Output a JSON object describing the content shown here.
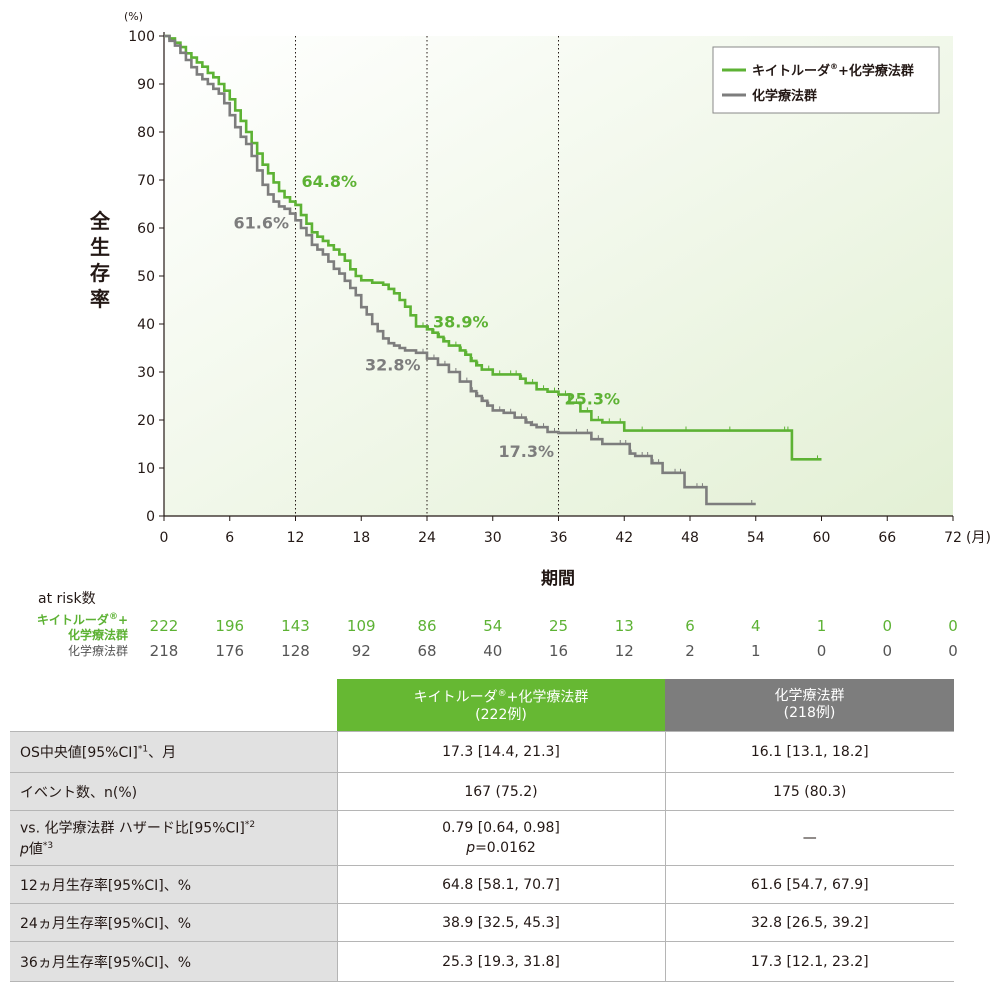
{
  "chart_data": {
    "type": "line",
    "ylabel": "全生存率",
    "y_unit": "(%)",
    "xlabel": "期間",
    "x_unit": "(月)",
    "xlim": [
      0,
      72
    ],
    "ylim": [
      0,
      100
    ],
    "xticks": [
      "0",
      "6",
      "12",
      "18",
      "24",
      "30",
      "36",
      "42",
      "48",
      "54",
      "60",
      "66",
      "72"
    ],
    "yticks": [
      "0",
      "10",
      "20",
      "30",
      "40",
      "50",
      "60",
      "70",
      "80",
      "90",
      "100"
    ],
    "reference_lines_x": [
      12,
      24,
      36
    ],
    "legend_position": "top-right",
    "series": [
      {
        "name": "キイトルーダ®+化学療法群",
        "legend_label": "キイトルーダ",
        "legend_suffix": "+化学療法群",
        "color": "#5db234",
        "points": [
          [
            0,
            100
          ],
          [
            0.5,
            99.5
          ],
          [
            1,
            98.6
          ],
          [
            1.5,
            97.7
          ],
          [
            2,
            96.4
          ],
          [
            2.5,
            95.5
          ],
          [
            3,
            94.5
          ],
          [
            3.5,
            93.6
          ],
          [
            4,
            92.3
          ],
          [
            4.5,
            91.4
          ],
          [
            5,
            90
          ],
          [
            5.5,
            88.6
          ],
          [
            6,
            86.8
          ],
          [
            6.5,
            84.5
          ],
          [
            7,
            82.3
          ],
          [
            7.5,
            80
          ],
          [
            8,
            77.7
          ],
          [
            8.5,
            75.5
          ],
          [
            9,
            73.2
          ],
          [
            9.5,
            71.4
          ],
          [
            10,
            69.5
          ],
          [
            10.5,
            67.7
          ],
          [
            11,
            66.4
          ],
          [
            11.5,
            65.5
          ],
          [
            12,
            64.8
          ],
          [
            12.5,
            62.7
          ],
          [
            13,
            60.9
          ],
          [
            13.5,
            59.1
          ],
          [
            14,
            58.2
          ],
          [
            14.5,
            57.3
          ],
          [
            15,
            56.4
          ],
          [
            15.5,
            55.5
          ],
          [
            16,
            54.5
          ],
          [
            16.5,
            53.2
          ],
          [
            17,
            51.4
          ],
          [
            17.5,
            50
          ],
          [
            18,
            49.1
          ],
          [
            19,
            48.6
          ],
          [
            20,
            48.2
          ],
          [
            20.5,
            47.3
          ],
          [
            21,
            46.4
          ],
          [
            21.5,
            45
          ],
          [
            22,
            43.6
          ],
          [
            22.5,
            41.8
          ],
          [
            23,
            39.5
          ],
          [
            24,
            38.9
          ],
          [
            24.5,
            38.2
          ],
          [
            25,
            37.3
          ],
          [
            25.5,
            36.4
          ],
          [
            26,
            35.5
          ],
          [
            27,
            34.5
          ],
          [
            27.5,
            33.6
          ],
          [
            28,
            32.3
          ],
          [
            28.5,
            31.4
          ],
          [
            29,
            30.5
          ],
          [
            30,
            29.5
          ],
          [
            31,
            29.5
          ],
          [
            32,
            29.5
          ],
          [
            32.5,
            28.6
          ],
          [
            33,
            27.7
          ],
          [
            34,
            26.4
          ],
          [
            35,
            25.9
          ],
          [
            36,
            25.3
          ],
          [
            37,
            23.6
          ],
          [
            38,
            21.8
          ],
          [
            39,
            20
          ],
          [
            40,
            19.5
          ],
          [
            41,
            19.5
          ],
          [
            42,
            17.8
          ],
          [
            44,
            17.8
          ],
          [
            48,
            17.8
          ],
          [
            52,
            17.8
          ],
          [
            57,
            17.8
          ],
          [
            57.3,
            11.8
          ],
          [
            60,
            11.8
          ]
        ]
      },
      {
        "name": "化学療法群",
        "legend_label": "化学療法群",
        "color": "#7d7d7d",
        "points": [
          [
            0,
            100
          ],
          [
            0.5,
            99
          ],
          [
            1,
            98
          ],
          [
            1.5,
            96.5
          ],
          [
            2,
            95
          ],
          [
            2.5,
            93.5
          ],
          [
            3,
            92
          ],
          [
            3.5,
            91
          ],
          [
            4,
            90
          ],
          [
            4.5,
            89
          ],
          [
            5,
            88
          ],
          [
            5.5,
            86
          ],
          [
            6,
            83.5
          ],
          [
            6.5,
            81
          ],
          [
            7,
            79
          ],
          [
            7.5,
            77.5
          ],
          [
            8,
            75
          ],
          [
            8.5,
            72
          ],
          [
            9,
            69
          ],
          [
            9.5,
            67
          ],
          [
            10,
            65.5
          ],
          [
            10.5,
            64.5
          ],
          [
            11,
            64
          ],
          [
            11.5,
            63
          ],
          [
            12,
            61.6
          ],
          [
            12.5,
            60
          ],
          [
            13,
            58.5
          ],
          [
            13.5,
            56.5
          ],
          [
            14,
            55.5
          ],
          [
            14.5,
            54.5
          ],
          [
            15,
            53
          ],
          [
            15.5,
            51.5
          ],
          [
            16,
            50.5
          ],
          [
            16.5,
            49
          ],
          [
            17,
            47.5
          ],
          [
            17.5,
            46
          ],
          [
            18,
            43.5
          ],
          [
            18.5,
            42
          ],
          [
            19,
            40
          ],
          [
            19.5,
            38.5
          ],
          [
            20,
            37
          ],
          [
            20.5,
            36
          ],
          [
            21,
            35.5
          ],
          [
            21.5,
            35
          ],
          [
            22,
            34.5
          ],
          [
            23,
            34
          ],
          [
            24,
            32.8
          ],
          [
            25,
            31.5
          ],
          [
            26,
            30
          ],
          [
            27,
            28
          ],
          [
            28,
            26
          ],
          [
            28.5,
            25
          ],
          [
            29,
            24
          ],
          [
            29.5,
            23
          ],
          [
            30,
            22
          ],
          [
            31,
            21.5
          ],
          [
            32,
            20.5
          ],
          [
            33,
            19.5
          ],
          [
            33.5,
            19
          ],
          [
            34,
            18.5
          ],
          [
            35,
            17.5
          ],
          [
            36,
            17.3
          ],
          [
            38,
            17.3
          ],
          [
            39,
            16
          ],
          [
            40,
            15
          ],
          [
            42,
            15
          ],
          [
            42.5,
            13
          ],
          [
            43,
            12.5
          ],
          [
            44,
            12.5
          ],
          [
            44.5,
            11
          ],
          [
            45,
            11
          ],
          [
            45.5,
            9
          ],
          [
            47,
            9
          ],
          [
            47.5,
            6
          ],
          [
            49,
            6
          ],
          [
            49.5,
            2.5
          ],
          [
            54,
            2.5
          ]
        ]
      }
    ],
    "annotations": [
      {
        "text": "64.8%",
        "series": 0
      },
      {
        "text": "61.6%",
        "series": 1
      },
      {
        "text": "38.9%",
        "series": 0
      },
      {
        "text": "32.8%",
        "series": 1
      },
      {
        "text": "25.3%",
        "series": 0
      },
      {
        "text": "17.3%",
        "series": 1
      }
    ]
  },
  "at_risk": {
    "title": "at risk数",
    "group1_label_line1": "キイトルーダ",
    "group1_label_sup": "®",
    "group1_label_plus": "+",
    "group1_label_line2": "化学療法群",
    "group2_label": "化学療法群",
    "group1_values": [
      "222",
      "196",
      "143",
      "109",
      "86",
      "54",
      "25",
      "13",
      "6",
      "4",
      "1",
      "0",
      "0"
    ],
    "group2_values": [
      "218",
      "176",
      "128",
      "92",
      "68",
      "40",
      "16",
      "12",
      "2",
      "1",
      "0",
      "0",
      "0"
    ]
  },
  "table": {
    "header_green_line1": "キイトルーダ",
    "header_green_sup": "®",
    "header_green_suffix": "+化学療法群",
    "header_green_n": "(222例)",
    "header_gray_line1": "化学療法群",
    "header_gray_n": "(218例)",
    "rows": [
      {
        "label": "OS中央値[95%CI]",
        "sup": "*1",
        "suffix": "、月",
        "v1": "17.3 [14.4, 21.3]",
        "v2": "16.1 [13.1, 18.2]"
      },
      {
        "label": "イベント数、n(%)",
        "v1": "167 (75.2)",
        "v2": "175 (80.3)"
      },
      {
        "label": "vs. 化学療法群 ハザード比[95%CI]",
        "sup": "*2",
        "label2_italic": "p",
        "label2_rest": "値",
        "label2_sup": "*3",
        "v1": "0.79 [0.64, 0.98]",
        "v1_line2_italic": "p",
        "v1_line2_rest": "=0.0162",
        "v2": "—"
      },
      {
        "label": "12ヵ月生存率[95%CI]、%",
        "v1": "64.8 [58.1, 70.7]",
        "v2": "61.6 [54.7, 67.9]"
      },
      {
        "label": "24ヵ月生存率[95%CI]、%",
        "v1": "38.9 [32.5, 45.3]",
        "v2": "32.8 [26.5, 39.2]"
      },
      {
        "label": "36ヵ月生存率[95%CI]、%",
        "v1": "25.3 [19.3, 31.8]",
        "v2": "17.3 [12.1, 23.2]"
      }
    ]
  }
}
